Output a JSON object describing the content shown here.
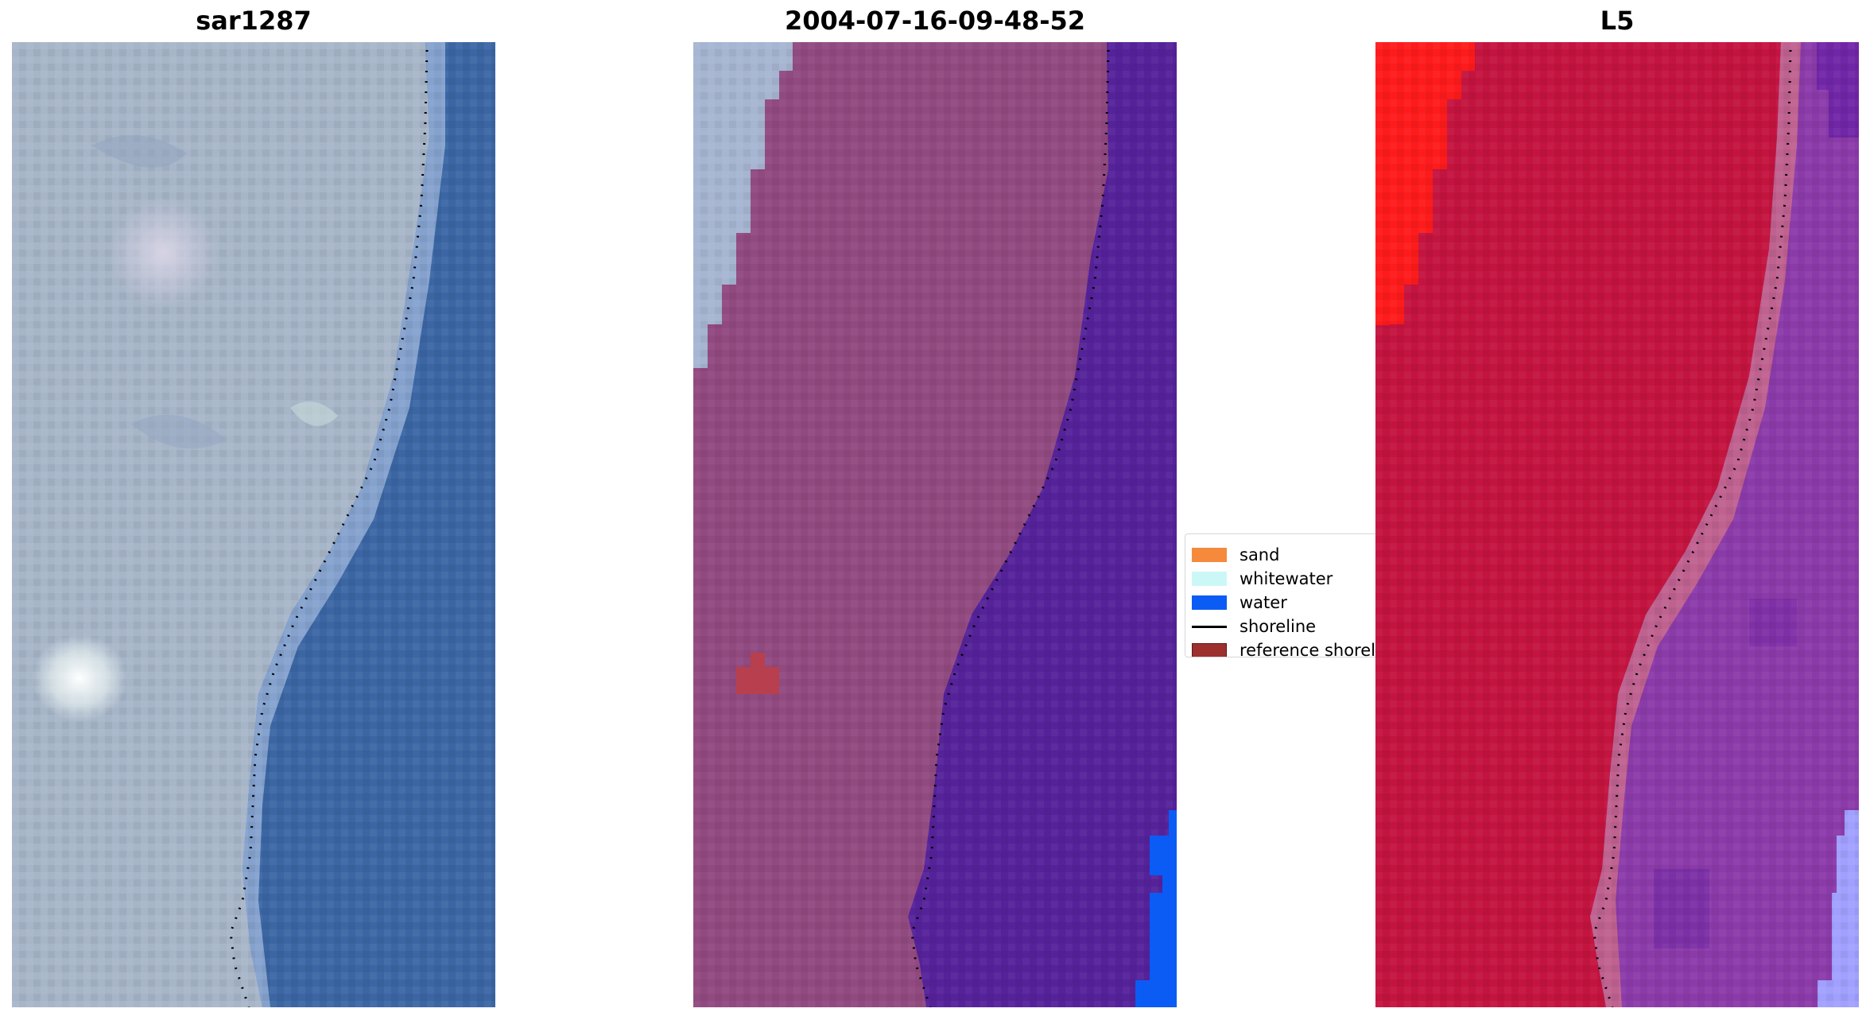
{
  "panels": [
    {
      "title": "sar1287",
      "kind": "rgb"
    },
    {
      "title": "2004-07-16-09-48-52",
      "kind": "classified"
    },
    {
      "title": "L5",
      "kind": "index"
    }
  ],
  "legend": {
    "items": [
      {
        "label": "sand",
        "type": "patch",
        "color": "#f58a3c"
      },
      {
        "label": "whitewater",
        "type": "patch",
        "color": "#ccf7f7"
      },
      {
        "label": "water",
        "type": "patch",
        "color": "#0a5cf5"
      },
      {
        "label": "shoreline",
        "type": "line",
        "color": "#000000"
      },
      {
        "label": "reference shoreline",
        "type": "patch",
        "color": "#9e2f2f"
      }
    ]
  },
  "colors": {
    "rgb_land": "#a6b4c8",
    "rgb_water": "#3465a4",
    "classified_land": "#8f4a80",
    "classified_water": "#55229a",
    "classified_whitewater": "#a5b5d2",
    "classified_sand": "#b8404e",
    "index_land": "#c5143e",
    "index_bright": "#ff1a1a",
    "index_water": "#8a3aa8",
    "index_far_water": "#a0a0ff"
  }
}
